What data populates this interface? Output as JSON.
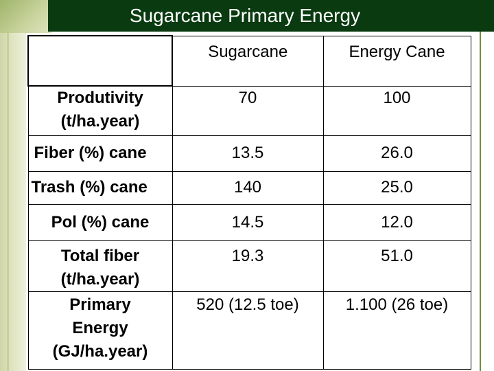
{
  "title": "Sugarcane Primary Energy",
  "table": {
    "headers": [
      "",
      "Sugarcane",
      "Energy Cane"
    ],
    "rows": [
      {
        "label_lines": [
          "Produtivity",
          "(t/ha.year)"
        ],
        "sugarcane": "70",
        "energy_cane": "100"
      },
      {
        "label_lines": [
          "Fiber (%) cane"
        ],
        "sugarcane": "13.5",
        "energy_cane": "26.0"
      },
      {
        "label_lines": [
          "Trash (%) cane"
        ],
        "sugarcane": "140",
        "energy_cane": "25.0"
      },
      {
        "label_lines": [
          "Pol (%) cane"
        ],
        "sugarcane": "14.5",
        "energy_cane": "12.0"
      },
      {
        "label_lines": [
          "Total fiber",
          "(t/ha.year)"
        ],
        "sugarcane": "19.3",
        "energy_cane": "51.0"
      },
      {
        "label_lines": [
          "Primary",
          "Energy",
          "(GJ/ha.year)"
        ],
        "sugarcane": "520 (12.5 toe)",
        "energy_cane": "1.100 (26 toe)"
      }
    ]
  },
  "colors": {
    "title_bar": "#0a3a10",
    "accent_line": "#6f8f3a",
    "strip": "#dfe4c0"
  }
}
